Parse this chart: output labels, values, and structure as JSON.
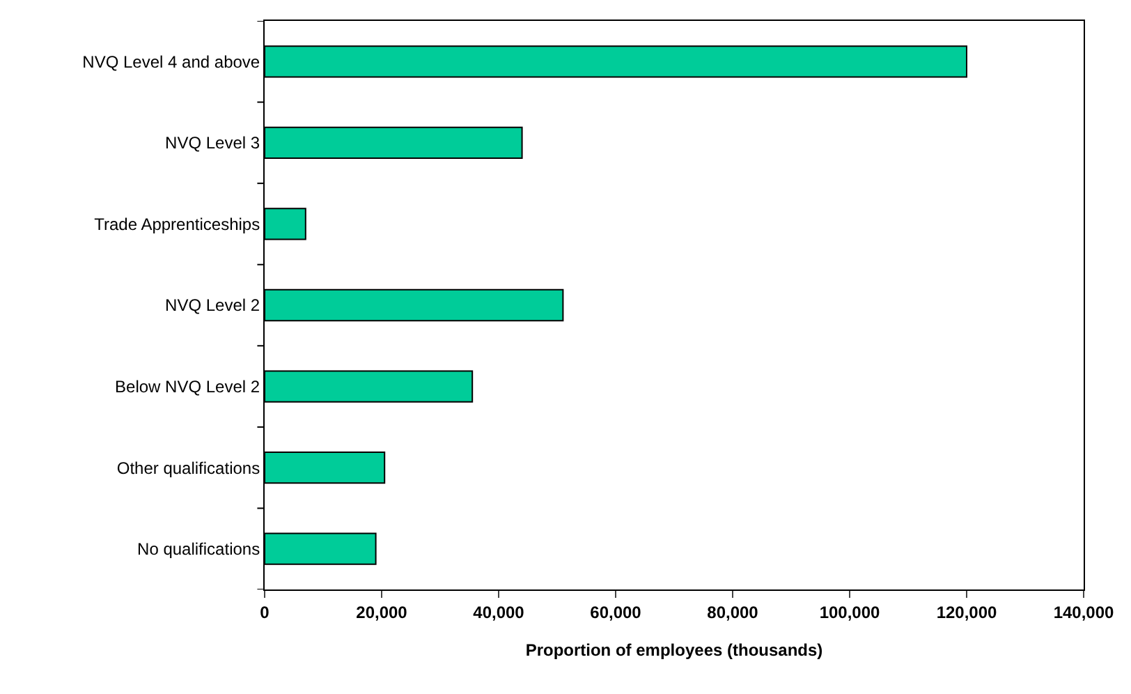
{
  "chart_data": {
    "type": "bar",
    "orientation": "horizontal",
    "xlabel": "Proportion of employees (thousands)",
    "categories": [
      "NVQ Level 4 and above",
      "NVQ Level 3",
      "Trade Apprenticeships",
      "NVQ Level 2",
      "Below NVQ Level 2",
      "Other qualifications",
      "No qualifications"
    ],
    "values": [
      120000,
      44000,
      7000,
      51000,
      35500,
      20500,
      19000
    ],
    "color": "#00cc99",
    "xlim": [
      0,
      140000
    ],
    "xticks": [
      {
        "value": 0,
        "label": "0"
      },
      {
        "value": 20000,
        "label": "20,000"
      },
      {
        "value": 40000,
        "label": "40,000"
      },
      {
        "value": 60000,
        "label": "60,000"
      },
      {
        "value": 80000,
        "label": "80,000"
      },
      {
        "value": 100000,
        "label": "100,000"
      },
      {
        "value": 120000,
        "label": "120,000"
      },
      {
        "value": 140000,
        "label": "140,000"
      }
    ]
  }
}
